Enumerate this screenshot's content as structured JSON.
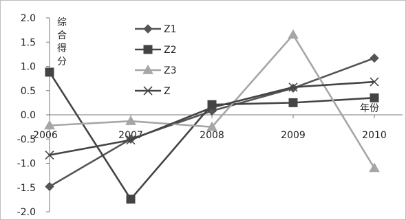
{
  "chart_data": {
    "type": "line",
    "title": "",
    "xlabel": "年份",
    "ylabel": "综合得分",
    "x": [
      "2006",
      "2007",
      "2008",
      "2009",
      "2010"
    ],
    "yticks": [
      "2.0",
      "1.5",
      "1.0",
      "0.5",
      "0.0",
      "-0.5",
      "-1.0",
      "-1.5",
      "-2.0"
    ],
    "ylim": [
      -2.0,
      2.0
    ],
    "grid": false,
    "legend_position": "top-center",
    "series": [
      {
        "name": "Z1",
        "values": [
          -1.48,
          -0.5,
          0.08,
          0.55,
          1.17
        ],
        "color": "#555555",
        "marker": "diamond"
      },
      {
        "name": "Z2",
        "values": [
          0.88,
          -1.74,
          0.21,
          0.25,
          0.35
        ],
        "color": "#444444",
        "marker": "square"
      },
      {
        "name": "Z3",
        "values": [
          -0.22,
          -0.13,
          -0.25,
          1.65,
          -1.1
        ],
        "color": "#a6a6a6",
        "marker": "triangle"
      },
      {
        "name": "Z",
        "values": [
          -0.83,
          -0.52,
          0.15,
          0.57,
          0.68
        ],
        "color": "#444444",
        "marker": "x"
      }
    ]
  }
}
